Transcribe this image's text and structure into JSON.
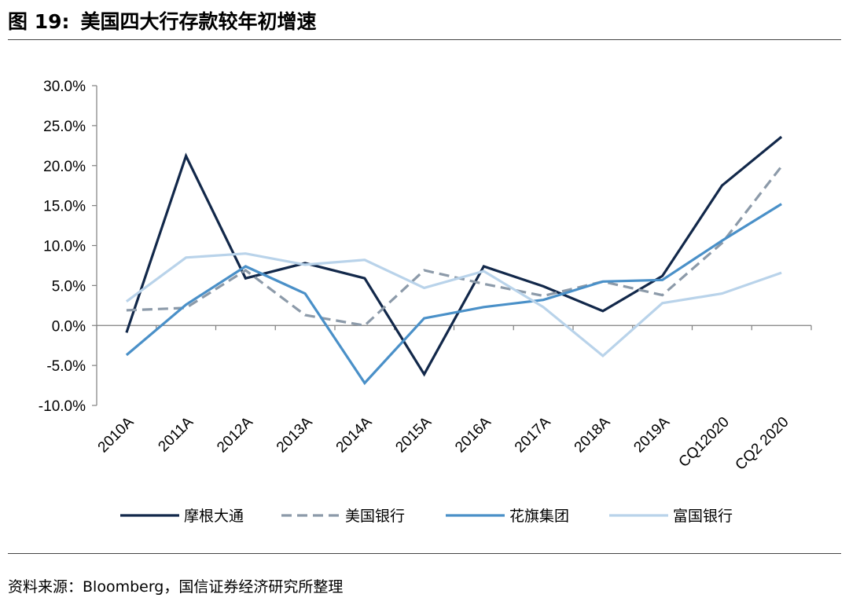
{
  "figure": {
    "number": "图 19:",
    "title": "美国四大行存款较年初增速"
  },
  "source": "资料来源：Bloomberg，国信证券经济研究所整理",
  "chart_data": {
    "type": "line",
    "categories": [
      "2010A",
      "2011A",
      "2012A",
      "2013A",
      "2014A",
      "2015A",
      "2016A",
      "2017A",
      "2018A",
      "2019A",
      "CQ12020",
      "CQ2 2020"
    ],
    "ylim": [
      -10,
      30
    ],
    "yticks": [
      -10,
      -5,
      0,
      5,
      10,
      15,
      20,
      25,
      30
    ],
    "ytick_labels": [
      "-10.0%",
      "-5.0%",
      "0.0%",
      "5.0%",
      "10.0%",
      "15.0%",
      "20.0%",
      "25.0%",
      "30.0%"
    ],
    "grid": false,
    "legend_position": "bottom",
    "series": [
      {
        "name": "摩根大通",
        "color": "#12284a",
        "dash": "solid",
        "values": [
          -0.9,
          21.2,
          5.9,
          7.8,
          5.9,
          -6.1,
          7.4,
          4.9,
          1.8,
          6.2,
          17.5,
          23.6
        ]
      },
      {
        "name": "美国银行",
        "color": "#8c9aa9",
        "dash": "dashed",
        "values": [
          1.9,
          2.2,
          6.9,
          1.3,
          0.0,
          6.9,
          5.2,
          3.7,
          5.5,
          3.8,
          10.3,
          19.9
        ]
      },
      {
        "name": "花旗集团",
        "color": "#4a90c8",
        "dash": "solid",
        "values": [
          -3.7,
          2.6,
          7.4,
          4.0,
          -7.2,
          0.9,
          2.3,
          3.2,
          5.5,
          5.7,
          10.6,
          15.2
        ]
      },
      {
        "name": "富国银行",
        "color": "#b9d3ea",
        "dash": "solid",
        "values": [
          3.0,
          8.5,
          9.0,
          7.6,
          8.2,
          4.7,
          6.8,
          2.3,
          -3.8,
          2.8,
          4.0,
          6.6
        ]
      }
    ]
  }
}
